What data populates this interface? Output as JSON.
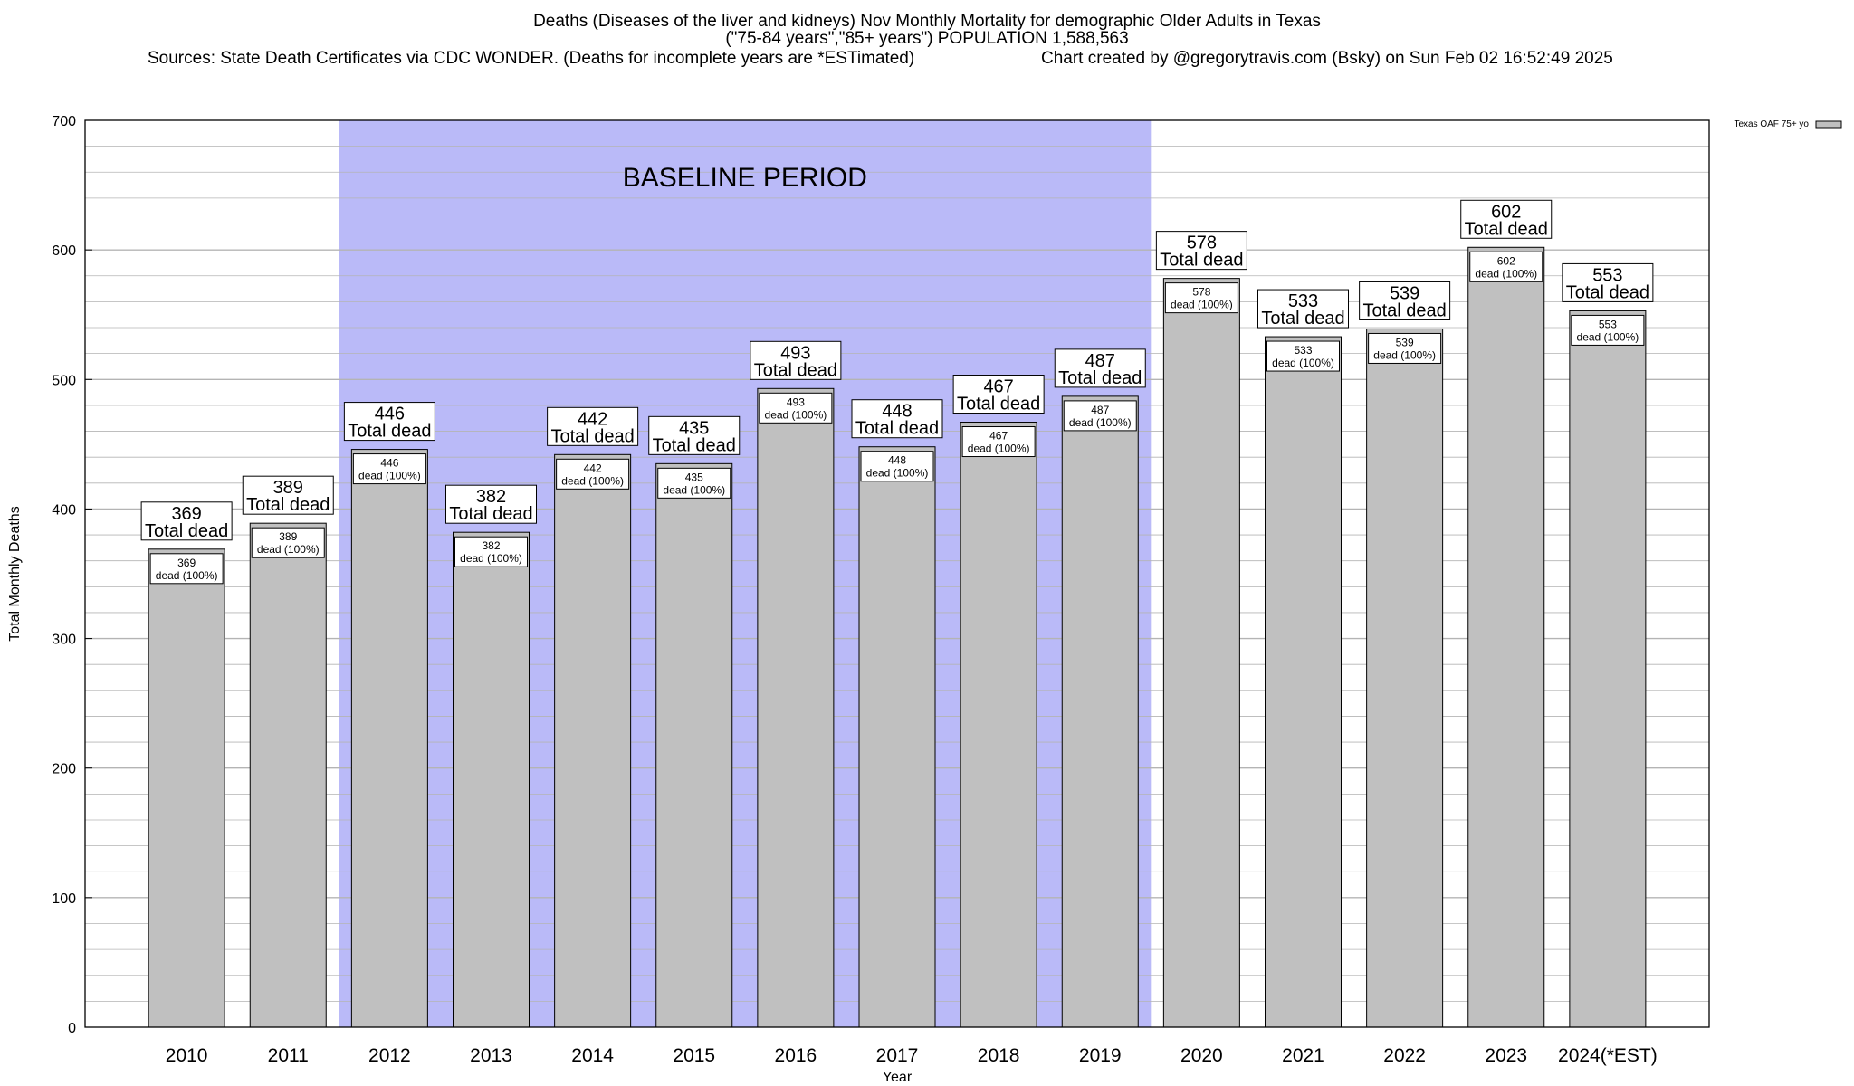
{
  "title": {
    "line1": "Deaths (Diseases of the liver and kidneys) Nov Monthly Mortality for demographic Older Adults in Texas",
    "line2": "(\"75-84 years\",\"85+ years\") POPULATION 1,588,563",
    "sources": "Sources: State Death Certificates via CDC WONDER. (Deaths for incomplete years are *ESTimated)",
    "credit": "Chart created by @gregorytravis.com (Bsky) on Sun Feb 02 16:52:49 2025"
  },
  "chart_data": {
    "type": "bar",
    "categories": [
      "2010",
      "2011",
      "2012",
      "2013",
      "2014",
      "2015",
      "2016",
      "2017",
      "2018",
      "2019",
      "2020",
      "2021",
      "2022",
      "2023",
      "2024(*EST)"
    ],
    "series": [
      {
        "name": "Texas OAF 75+ yo",
        "values": [
          369,
          389,
          446,
          382,
          442,
          435,
          493,
          448,
          467,
          487,
          578,
          533,
          539,
          602,
          553
        ]
      }
    ],
    "xlabel": "Year",
    "ylabel": "Total Monthly Deaths",
    "ylim": [
      0,
      700
    ],
    "yticks": [
      0,
      100,
      200,
      300,
      400,
      500,
      600,
      700
    ],
    "grid": true,
    "legend_position": "top-right",
    "baseline": {
      "label": "BASELINE PERIOD",
      "from": "2012",
      "to": "2019"
    },
    "total_label": "Total dead",
    "inner_label": "dead (100%)",
    "colors": {
      "bar": "#c0c0c0",
      "baseline_fill": "#babaf8",
      "grid": "#b4b4b4"
    }
  }
}
